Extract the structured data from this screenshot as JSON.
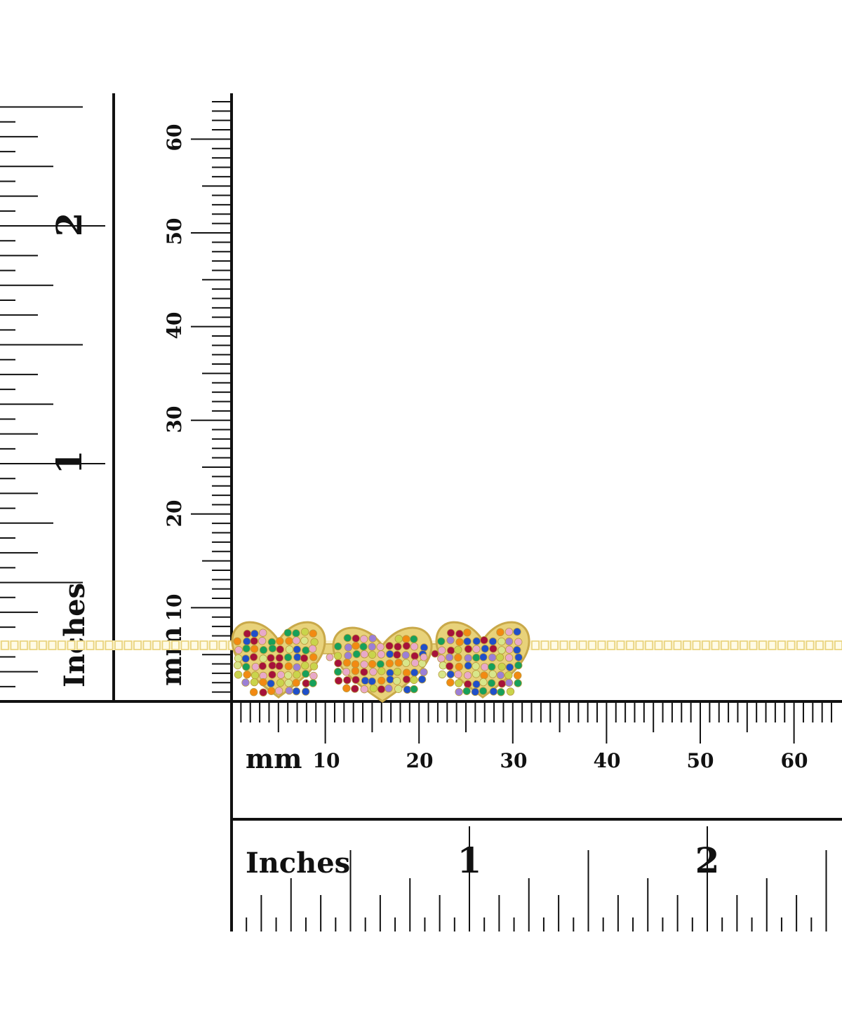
{
  "rulers": {
    "horizontal_mm": {
      "unit_label": "mm",
      "tick_labels": [
        "10",
        "20",
        "30",
        "40",
        "50",
        "60"
      ]
    },
    "horizontal_in": {
      "unit_label": "Inches",
      "tick_labels": [
        "1",
        "2"
      ]
    },
    "vertical_mm": {
      "unit_label": "mm",
      "tick_labels": [
        "10",
        "20",
        "30",
        "40",
        "50",
        "60"
      ]
    },
    "vertical_in": {
      "unit_label": "Inches",
      "tick_labels": [
        "1",
        "2"
      ]
    }
  },
  "product": {
    "metal_color": "#e8d27a",
    "gem_colors": [
      "#a6123a",
      "#1f4fc9",
      "#17a05a",
      "#f28a12",
      "#9b7fd6",
      "#e8a9c9",
      "#d8e68a",
      "#c9d44c"
    ]
  }
}
